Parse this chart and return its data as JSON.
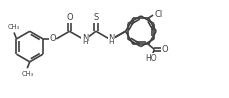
{
  "bg_color": "#ffffff",
  "line_color": "#404040",
  "line_width": 1.2,
  "figsize": [
    2.3,
    0.98
  ],
  "dpi": 100,
  "xlim": [
    0.0,
    2.3
  ],
  "ylim": [
    0.0,
    0.98
  ]
}
